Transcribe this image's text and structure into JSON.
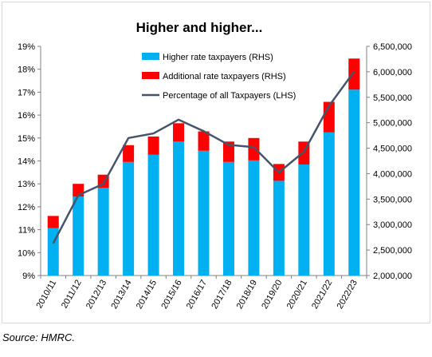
{
  "source_note": "Source: HMRC.",
  "chart_data": {
    "type": "bar",
    "title": "Higher and higher...",
    "stacked": true,
    "categories": [
      "2010/11",
      "2011/12",
      "2012/13",
      "2013/14",
      "2014/15",
      "2015/16",
      "2016/17",
      "2017/18",
      "2018/19",
      "2019/20",
      "2020/21",
      "2021/22",
      "2022/23"
    ],
    "series": [
      {
        "name": "Higher rate taxpayers (RHS)",
        "type": "bar",
        "axis": "right",
        "color": "#00b0f0",
        "values": [
          2930000,
          3550000,
          3720000,
          4230000,
          4370000,
          4630000,
          4450000,
          4230000,
          4260000,
          3860000,
          4180000,
          4810000,
          5650000
        ]
      },
      {
        "name": "Additional rate taxpayers (RHS)",
        "type": "bar",
        "axis": "right",
        "color": "#ff0000",
        "values": [
          240000,
          250000,
          260000,
          330000,
          360000,
          360000,
          380000,
          400000,
          440000,
          330000,
          450000,
          600000,
          610000
        ]
      },
      {
        "name": "Percentage of all Taxpayers (LHS)",
        "type": "line",
        "axis": "left",
        "color": "#44546a",
        "values": [
          10.4,
          12.5,
          13.0,
          15.0,
          15.2,
          15.8,
          15.3,
          14.7,
          14.6,
          13.5,
          14.4,
          16.4,
          17.9
        ]
      }
    ],
    "left_axis": {
      "ylim": [
        9,
        19
      ],
      "ticks": [
        "9%",
        "10%",
        "11%",
        "12%",
        "13%",
        "14%",
        "15%",
        "16%",
        "17%",
        "18%",
        "19%"
      ]
    },
    "right_axis": {
      "ylim": [
        2000000,
        6500000
      ],
      "ticks": [
        "2,000,000",
        "2,500,000",
        "3,000,000",
        "3,500,000",
        "4,000,000",
        "4,500,000",
        "5,000,000",
        "5,500,000",
        "6,000,000",
        "6,500,000"
      ]
    },
    "legend_position": "top-center",
    "grid": false
  }
}
